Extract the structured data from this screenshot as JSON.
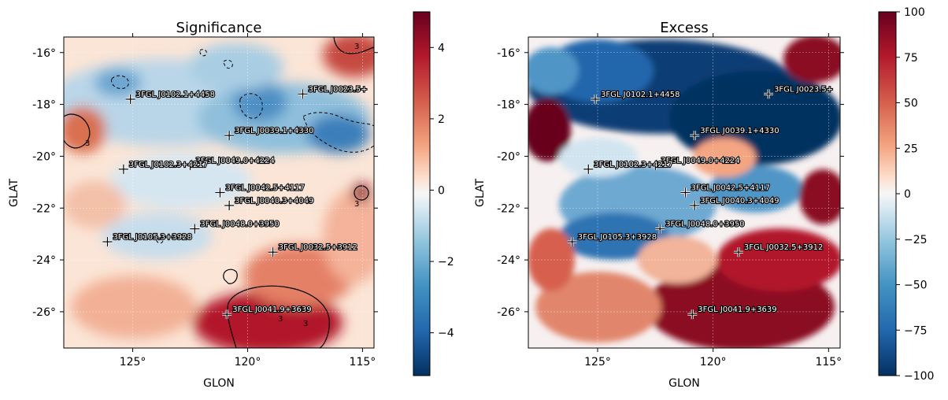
{
  "chart_data": [
    {
      "type": "heatmap",
      "title": "Significance",
      "xlabel": "GLON",
      "ylabel": "GLAT",
      "xlim": [
        128,
        114.5
      ],
      "ylim": [
        -27.4,
        -15.4
      ],
      "xticks": [
        125,
        120,
        115
      ],
      "xticklabels": [
        "125°",
        "120°",
        "115°"
      ],
      "yticks": [
        -16,
        -18,
        -20,
        -22,
        -24,
        -26
      ],
      "yticklabels": [
        "-16°",
        "-18°",
        "-20°",
        "-22°",
        "-24°",
        "-26°"
      ],
      "colormap": "RdBu_r",
      "colorbar": {
        "range": [
          -5.2,
          5
        ],
        "ticks": [
          4,
          2,
          0,
          -2,
          -4
        ],
        "ticklabels": [
          "4",
          "2",
          "0",
          "−2",
          "−4"
        ]
      },
      "contour_levels": [
        -3,
        3
      ],
      "contour_label": "3",
      "grid": true
    },
    {
      "type": "heatmap",
      "title": "Excess",
      "xlabel": "GLON",
      "ylabel": "GLAT",
      "xlim": [
        128,
        114.5
      ],
      "ylim": [
        -27.4,
        -15.4
      ],
      "xticks": [
        125,
        120,
        115
      ],
      "xticklabels": [
        "125°",
        "120°",
        "115°"
      ],
      "yticks": [
        -16,
        -18,
        -20,
        -22,
        -24,
        -26
      ],
      "yticklabels": [
        "-16°",
        "-18°",
        "-20°",
        "-22°",
        "-24°",
        "-26°"
      ],
      "colormap": "RdBu_r",
      "colorbar": {
        "range": [
          -100,
          100
        ],
        "ticks": [
          100,
          75,
          50,
          25,
          0,
          -25,
          -50,
          -75,
          -100
        ],
        "ticklabels": [
          "100",
          "75",
          "50",
          "25",
          "0",
          "−25",
          "−50",
          "−75",
          "−100"
        ]
      },
      "grid": true
    }
  ],
  "sources": [
    {
      "name": "3FGL J0102.1+4458",
      "glon": 125.1,
      "glat": -17.8
    },
    {
      "name": "3FGL J0023.5+",
      "glon": 117.6,
      "glat": -17.6
    },
    {
      "name": "3FGL J0039.1+4330",
      "glon": 120.8,
      "glat": -19.2
    },
    {
      "name": "3FGL J0049.0+4224",
      "glon": 122.5,
      "glat": -20.35
    },
    {
      "name": "3FGL J0102.3+4217",
      "glon": 125.4,
      "glat": -20.5
    },
    {
      "name": "3FGL J0042.5+4117",
      "glon": 121.2,
      "glat": -21.4
    },
    {
      "name": "3FGL J0040.3+4049",
      "glon": 120.8,
      "glat": -21.9
    },
    {
      "name": "3FGL J0048.0+3950",
      "glon": 122.3,
      "glat": -22.8
    },
    {
      "name": "3FGL J0105.3+3928",
      "glon": 126.1,
      "glat": -23.3
    },
    {
      "name": "3FGL J0032.5+3912",
      "glon": 118.9,
      "glat": -23.7
    },
    {
      "name": "3FGL J0041.9+3639",
      "glon": 120.9,
      "glat": -26.1
    }
  ]
}
